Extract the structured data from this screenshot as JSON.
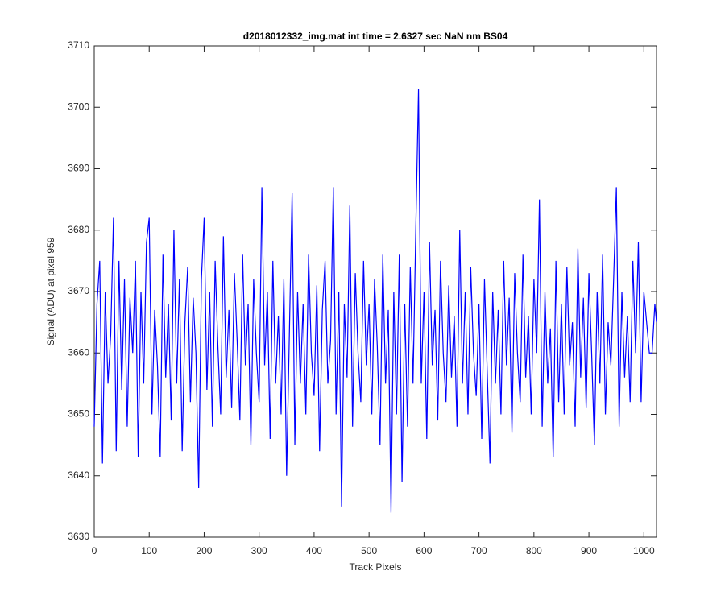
{
  "chart_data": {
    "type": "line",
    "title": "d2018012332_img.mat int time = 2.6327 sec  NaN nm BS04",
    "xlabel": "Track Pixels",
    "ylabel": "Signal (ADU) at pixel 959",
    "color": "#0000ff",
    "xlim": [
      0,
      1023
    ],
    "ylim": [
      3630,
      3710
    ],
    "xticks": [
      0,
      100,
      200,
      300,
      400,
      500,
      600,
      700,
      800,
      900,
      1000
    ],
    "yticks": [
      3630,
      3640,
      3650,
      3660,
      3670,
      3680,
      3690,
      3700,
      3710
    ],
    "x": [
      0,
      5,
      10,
      15,
      20,
      25,
      30,
      35,
      40,
      45,
      50,
      55,
      60,
      65,
      70,
      75,
      80,
      85,
      90,
      95,
      100,
      105,
      110,
      115,
      120,
      125,
      130,
      135,
      140,
      145,
      150,
      155,
      160,
      165,
      170,
      175,
      180,
      185,
      190,
      195,
      200,
      205,
      210,
      215,
      220,
      225,
      230,
      235,
      240,
      245,
      250,
      255,
      260,
      265,
      270,
      275,
      280,
      285,
      290,
      295,
      300,
      305,
      310,
      315,
      320,
      325,
      330,
      335,
      340,
      345,
      350,
      355,
      360,
      365,
      370,
      375,
      380,
      385,
      390,
      395,
      400,
      405,
      410,
      415,
      420,
      425,
      430,
      435,
      440,
      445,
      450,
      455,
      460,
      465,
      470,
      475,
      480,
      485,
      490,
      495,
      500,
      505,
      510,
      515,
      520,
      525,
      530,
      535,
      540,
      545,
      550,
      555,
      560,
      565,
      570,
      575,
      580,
      585,
      590,
      595,
      600,
      605,
      610,
      615,
      620,
      625,
      630,
      635,
      640,
      645,
      650,
      655,
      660,
      665,
      670,
      675,
      680,
      685,
      690,
      695,
      700,
      705,
      710,
      715,
      720,
      725,
      730,
      735,
      740,
      745,
      750,
      755,
      760,
      765,
      770,
      775,
      780,
      785,
      790,
      795,
      800,
      805,
      810,
      815,
      820,
      825,
      830,
      835,
      840,
      845,
      850,
      855,
      860,
      865,
      870,
      875,
      880,
      885,
      890,
      895,
      900,
      905,
      910,
      915,
      920,
      925,
      930,
      935,
      940,
      945,
      950,
      955,
      960,
      965,
      970,
      975,
      980,
      985,
      990,
      995,
      1000,
      1005,
      1010,
      1015,
      1020,
      1023
    ],
    "values": [
      3648,
      3668,
      3675,
      3642,
      3670,
      3655,
      3663,
      3682,
      3644,
      3675,
      3654,
      3672,
      3648,
      3669,
      3660,
      3675,
      3643,
      3670,
      3655,
      3678,
      3682,
      3650,
      3667,
      3658,
      3643,
      3676,
      3656,
      3668,
      3649,
      3680,
      3655,
      3672,
      3644,
      3665,
      3674,
      3652,
      3669,
      3660,
      3638,
      3672,
      3682,
      3654,
      3670,
      3648,
      3675,
      3661,
      3650,
      3679,
      3656,
      3667,
      3651,
      3673,
      3662,
      3649,
      3676,
      3658,
      3668,
      3645,
      3672,
      3660,
      3652,
      3687,
      3658,
      3670,
      3646,
      3675,
      3655,
      3666,
      3650,
      3672,
      3640,
      3663,
      3686,
      3645,
      3670,
      3655,
      3668,
      3650,
      3676,
      3660,
      3653,
      3671,
      3644,
      3667,
      3675,
      3655,
      3662,
      3687,
      3650,
      3670,
      3635,
      3668,
      3656,
      3684,
      3648,
      3673,
      3660,
      3652,
      3675,
      3658,
      3668,
      3650,
      3672,
      3661,
      3645,
      3676,
      3655,
      3667,
      3634,
      3670,
      3650,
      3676,
      3639,
      3668,
      3648,
      3674,
      3655,
      3680,
      3703,
      3655,
      3670,
      3646,
      3678,
      3658,
      3667,
      3649,
      3675,
      3660,
      3652,
      3671,
      3656,
      3666,
      3648,
      3680,
      3655,
      3670,
      3650,
      3674,
      3660,
      3653,
      3668,
      3646,
      3672,
      3657,
      3642,
      3670,
      3655,
      3667,
      3650,
      3675,
      3658,
      3669,
      3647,
      3673,
      3660,
      3652,
      3676,
      3656,
      3666,
      3650,
      3672,
      3660,
      3685,
      3648,
      3670,
      3655,
      3664,
      3643,
      3675,
      3652,
      3668,
      3650,
      3674,
      3658,
      3665,
      3648,
      3677,
      3656,
      3669,
      3651,
      3673,
      3660,
      3645,
      3670,
      3655,
      3676,
      3650,
      3665,
      3658,
      3672,
      3687,
      3648,
      3670,
      3656,
      3666,
      3652,
      3675,
      3660,
      3678,
      3652,
      3670,
      3665,
      3660,
      3660,
      3668,
      3665
    ]
  }
}
